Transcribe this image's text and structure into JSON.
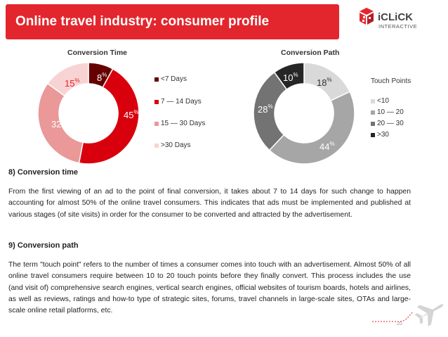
{
  "slide": {
    "title": "Online travel industry: consumer profile",
    "page_number": "20",
    "accent_color": "#e3262d"
  },
  "logo": {
    "text_top": "iCLiCK",
    "text_bottom": "INTERACTIVE"
  },
  "conversion_time_chart": {
    "title": "Conversion Time",
    "labels": [
      {
        "num": "8",
        "unit": "%"
      },
      {
        "num": "45",
        "unit": "%"
      },
      {
        "num": "32",
        "unit": "%"
      },
      {
        "num": "15",
        "unit": "%"
      }
    ],
    "legend": [
      "<7 Days",
      "7 — 14 Days",
      "15 — 30 Days",
      ">30 Days"
    ]
  },
  "conversion_path_chart": {
    "title": "Conversion Path",
    "legend_title": "Touch Points",
    "labels": [
      {
        "num": "18",
        "unit": "%"
      },
      {
        "num": "44",
        "unit": "%"
      },
      {
        "num": "28",
        "unit": "%"
      },
      {
        "num": "10",
        "unit": "%"
      }
    ],
    "legend": [
      "<10",
      "10 — 20",
      "20 — 30",
      ">30"
    ]
  },
  "chart_data": [
    {
      "type": "pie",
      "title": "Conversion Time",
      "categories": [
        "<7 Days",
        "7 — 14 Days",
        "15 — 30 Days",
        ">30 Days"
      ],
      "values": [
        8,
        45,
        32,
        15
      ],
      "colors": [
        "#660000",
        "#d9000d",
        "#ea9898",
        "#f8d3d3"
      ],
      "style": "donut",
      "legend_position": "right"
    },
    {
      "type": "pie",
      "title": "Conversion Path",
      "legend_title": "Touch Points",
      "categories": [
        "<10",
        "10 — 20",
        "20 — 30",
        ">30"
      ],
      "values": [
        18,
        44,
        28,
        10
      ],
      "colors": [
        "#d9d9d9",
        "#a6a6a6",
        "#737373",
        "#262626"
      ],
      "style": "donut",
      "legend_position": "right"
    }
  ],
  "section_time": {
    "heading": "8) Conversion time",
    "body": "From the first viewing of an ad to the point of final conversion, it takes about 7 to 14 days for such change to happen accounting for almost 50% of the online travel consumers. This indicates that ads must be implemented and published at various stages (of site visits) in order for the consumer to be converted and attracted by the advertisement."
  },
  "section_path": {
    "heading": "9) Conversion path",
    "body": "The term \"touch point\" refers to the number of times a consumer comes into touch with an advertisement. Almost 50% of all online travel consumers require between 10 to 20 touch points before they finally convert. This process includes the use (and visit of) comprehensive search engines, vertical search engines, official websites of tourism boards, hotels and airlines, as well as reviews, ratings and how-to type of strategic sites, forums, travel channels in large-scale sites, OTAs and large-scale online retail platforms, etc."
  }
}
